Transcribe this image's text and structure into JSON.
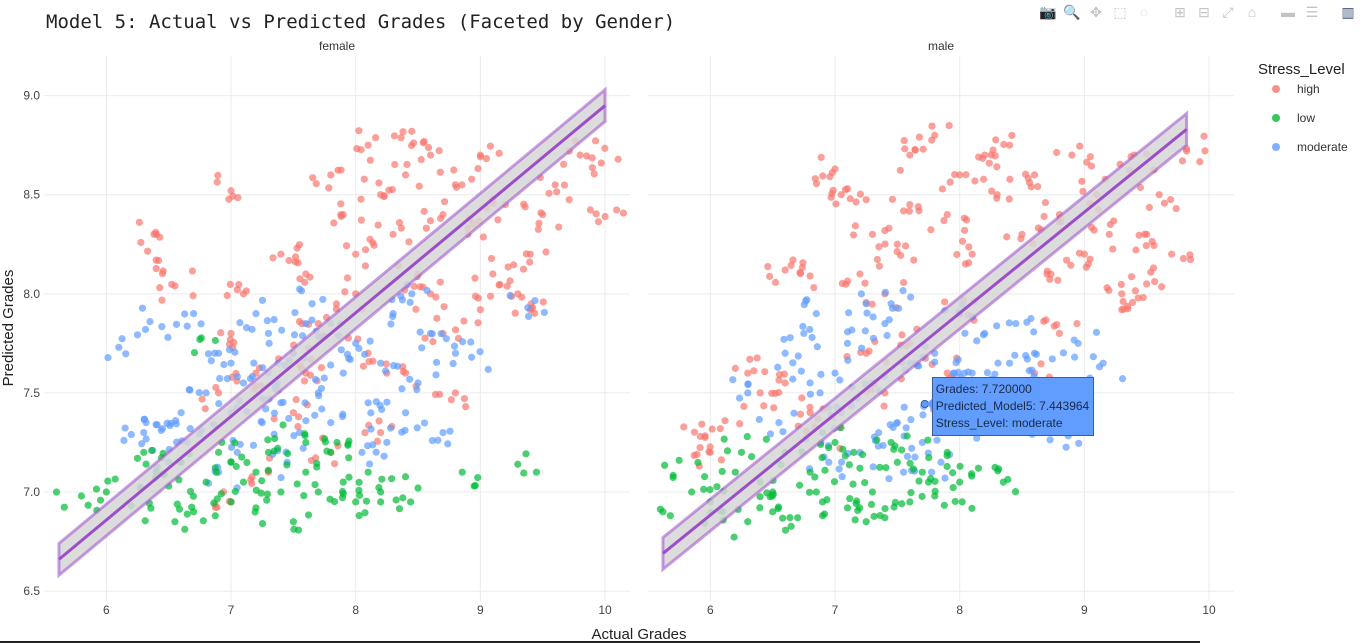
{
  "modebar": [
    {
      "name": "camera-icon",
      "glyph": "📷"
    },
    {
      "name": "zoom-icon",
      "glyph": "🔍"
    },
    {
      "name": "pan-icon",
      "glyph": "✥"
    },
    {
      "name": "box-select-icon",
      "glyph": "⬚"
    },
    {
      "name": "lasso-select-icon",
      "glyph": "◌"
    },
    {
      "name": "zoom-in-icon",
      "glyph": "⊞"
    },
    {
      "name": "zoom-out-icon",
      "glyph": "⊟"
    },
    {
      "name": "autoscale-icon",
      "glyph": "⤢"
    },
    {
      "name": "reset-axes-icon",
      "glyph": "⌂"
    },
    {
      "name": "spike-lines-icon",
      "glyph": "▬"
    },
    {
      "name": "compare-hover-icon",
      "glyph": "☰"
    },
    {
      "name": "plotly-logo-icon",
      "glyph": "▥"
    }
  ],
  "chart_data": {
    "type": "scatter",
    "title": "Model 5: Actual vs Predicted Grades (Faceted by Gender)",
    "xlabel": "Actual Grades",
    "ylabel": "Predicted Grades",
    "xlim": [
      5.5,
      10.2
    ],
    "ylim": [
      6.45,
      9.2
    ],
    "xticks": [
      6,
      7,
      8,
      9,
      10
    ],
    "yticks": [
      6.5,
      7.0,
      7.5,
      8.0,
      8.5,
      9.0
    ],
    "ytick_labels": [
      "6.5",
      "7.0",
      "7.5",
      "8.0",
      "8.5",
      "9.0"
    ],
    "grid": true,
    "legend": {
      "title": "Stress_Level",
      "position": "right"
    },
    "series": [
      {
        "name": "high",
        "color": "#f8766d"
      },
      {
        "name": "low",
        "color": "#00ba38"
      },
      {
        "name": "moderate",
        "color": "#619cff"
      }
    ],
    "fit_color": "#9b4dca",
    "band_color": "#d6d6d6",
    "facets": [
      {
        "label": "female",
        "fit": {
          "x": [
            5.62,
            10.0
          ],
          "y": [
            6.66,
            8.95
          ],
          "band_halfwidth_ends": 0.08
        },
        "samples": {
          "high": [
            [
              6.4,
              8.3
            ],
            [
              6.4,
              8.17
            ],
            [
              6.55,
              8.04
            ],
            [
              7.0,
              8.52
            ],
            [
              7.6,
              8.1
            ],
            [
              7.8,
              8.6
            ],
            [
              7.9,
              8.4
            ],
            [
              8.0,
              8.2
            ],
            [
              8.1,
              8.75
            ],
            [
              8.2,
              8.5
            ],
            [
              8.3,
              8.3
            ],
            [
              8.4,
              8.6
            ],
            [
              8.45,
              8.82
            ],
            [
              8.5,
              8.1
            ],
            [
              8.6,
              8.7
            ],
            [
              8.7,
              8.4
            ],
            [
              8.8,
              8.55
            ],
            [
              8.9,
              8.3
            ],
            [
              9.0,
              8.7
            ],
            [
              9.1,
              8.1
            ],
            [
              9.2,
              8.45
            ],
            [
              9.3,
              8.0
            ],
            [
              9.4,
              8.2
            ],
            [
              9.5,
              8.4
            ],
            [
              9.6,
              8.55
            ],
            [
              9.8,
              8.7
            ],
            [
              9.97,
              8.66
            ],
            [
              10.0,
              8.39
            ],
            [
              9.4,
              7.92
            ],
            [
              9.0,
              7.92
            ],
            [
              8.7,
              7.8
            ],
            [
              7.0,
              7.8
            ],
            [
              7.2,
              7.6
            ],
            [
              6.9,
              7.5
            ],
            [
              7.5,
              7.4
            ],
            [
              7.8,
              7.2
            ],
            [
              7.3,
              7.1
            ],
            [
              7.0,
              6.95
            ],
            [
              7.6,
              7.6
            ],
            [
              8.2,
              7.3
            ],
            [
              8.8,
              7.5
            ],
            [
              8.4,
              7.6
            ],
            [
              7.4,
              8.2
            ],
            [
              7.1,
              8.0
            ],
            [
              8.1,
              7.7
            ],
            [
              8.6,
              8.0
            ],
            [
              8.0,
              8.0
            ],
            [
              7.7,
              7.85
            ],
            [
              7.5,
              7.7
            ]
          ],
          "low": [
            [
              5.6,
              7.0
            ],
            [
              5.8,
              6.98
            ],
            [
              6.0,
              7.0
            ],
            [
              6.2,
              6.93
            ],
            [
              6.4,
              7.1
            ],
            [
              6.5,
              7.03
            ],
            [
              6.55,
              6.85
            ],
            [
              6.7,
              6.9
            ],
            [
              6.75,
              7.77
            ],
            [
              6.9,
              7.2
            ],
            [
              7.0,
              6.95
            ],
            [
              7.1,
              7.05
            ],
            [
              7.2,
              7.1
            ],
            [
              7.3,
              7.2
            ],
            [
              7.4,
              7.0
            ],
            [
              7.5,
              6.85
            ],
            [
              7.6,
              7.1
            ],
            [
              7.7,
              7.0
            ],
            [
              7.8,
              7.2
            ],
            [
              7.9,
              7.05
            ],
            [
              8.0,
              6.95
            ],
            [
              8.1,
              7.1
            ],
            [
              8.2,
              6.95
            ],
            [
              8.5,
              7.02
            ],
            [
              8.95,
              7.03
            ],
            [
              9.3,
              7.14
            ],
            [
              6.3,
              7.2
            ],
            [
              6.6,
              7.15
            ],
            [
              6.8,
              7.05
            ],
            [
              7.0,
              7.15
            ],
            [
              7.2,
              6.92
            ],
            [
              7.35,
              7.27
            ],
            [
              7.6,
              7.25
            ],
            [
              7.85,
              7.25
            ],
            [
              8.2,
              7.0
            ]
          ],
          "moderate": [
            [
              6.1,
              7.73
            ],
            [
              6.35,
              7.86
            ],
            [
              6.2,
              7.29
            ],
            [
              6.3,
              7.3
            ],
            [
              6.45,
              7.32
            ],
            [
              6.6,
              7.4
            ],
            [
              6.7,
              7.9
            ],
            [
              6.8,
              7.5
            ],
            [
              6.9,
              7.7
            ],
            [
              7.0,
              7.4
            ],
            [
              7.05,
              7.2
            ],
            [
              7.1,
              7.55
            ],
            [
              7.2,
              7.9
            ],
            [
              7.25,
              7.35
            ],
            [
              7.3,
              7.6
            ],
            [
              7.4,
              7.45
            ],
            [
              7.5,
              7.7
            ],
            [
              7.55,
              7.3
            ],
            [
              7.6,
              7.85
            ],
            [
              7.7,
              7.5
            ],
            [
              7.8,
              7.35
            ],
            [
              7.9,
              7.6
            ],
            [
              8.0,
              7.75
            ],
            [
              8.05,
              7.2
            ],
            [
              8.1,
              7.45
            ],
            [
              8.2,
              7.65
            ],
            [
              8.3,
              7.9
            ],
            [
              8.4,
              7.4
            ],
            [
              8.5,
              7.55
            ],
            [
              8.6,
              7.8
            ],
            [
              8.7,
              7.3
            ],
            [
              8.8,
              7.7
            ],
            [
              8.93,
              7.68
            ],
            [
              9.38,
              7.93
            ],
            [
              6.5,
              7.15
            ],
            [
              6.9,
              7.1
            ],
            [
              7.3,
              7.8
            ],
            [
              7.8,
              7.85
            ],
            [
              8.25,
              7.25
            ],
            [
              8.45,
              8.0
            ],
            [
              7.45,
              7.15
            ],
            [
              6.65,
              7.25
            ],
            [
              7.0,
              7.65
            ],
            [
              7.65,
              7.95
            ]
          ]
        }
      },
      {
        "label": "male",
        "fit": {
          "x": [
            5.62,
            9.82
          ],
          "y": [
            6.69,
            8.83
          ],
          "band_halfwidth_ends": 0.08
        },
        "samples": {
          "high": [
            [
              5.92,
              7.28
            ],
            [
              6.08,
              7.32
            ],
            [
              6.3,
              7.6
            ],
            [
              6.6,
              8.12
            ],
            [
              6.8,
              8.09
            ],
            [
              7.0,
              8.63
            ],
            [
              7.05,
              8.5
            ],
            [
              7.1,
              8.53
            ],
            [
              7.2,
              8.1
            ],
            [
              7.3,
              8.3
            ],
            [
              7.4,
              8.0
            ],
            [
              7.5,
              8.25
            ],
            [
              7.6,
              8.45
            ],
            [
              7.6,
              8.7
            ],
            [
              7.8,
              8.8
            ],
            [
              7.9,
              8.4
            ],
            [
              8.0,
              8.6
            ],
            [
              8.1,
              8.2
            ],
            [
              8.2,
              8.7
            ],
            [
              8.3,
              8.5
            ],
            [
              8.4,
              8.75
            ],
            [
              8.5,
              8.3
            ],
            [
              8.6,
              8.6
            ],
            [
              8.7,
              8.1
            ],
            [
              8.8,
              8.4
            ],
            [
              8.9,
              8.7
            ],
            [
              9.0,
              8.2
            ],
            [
              9.1,
              8.5
            ],
            [
              9.2,
              8.3
            ],
            [
              9.3,
              8.0
            ],
            [
              9.4,
              8.7
            ],
            [
              9.5,
              8.3
            ],
            [
              9.6,
              8.5
            ],
            [
              9.7,
              8.2
            ],
            [
              9.82,
              8.72
            ],
            [
              9.5,
              8.05
            ],
            [
              9.3,
              7.92
            ],
            [
              8.6,
              7.6
            ],
            [
              8.2,
              7.4
            ],
            [
              7.9,
              7.6
            ],
            [
              7.4,
              7.5
            ],
            [
              6.8,
              7.4
            ],
            [
              6.6,
              7.55
            ],
            [
              6.4,
              7.5
            ],
            [
              7.25,
              7.7
            ],
            [
              7.6,
              7.75
            ],
            [
              8.0,
              7.9
            ],
            [
              8.8,
              7.8
            ],
            [
              6.0,
              7.2
            ],
            [
              6.9,
              7.3
            ]
          ],
          "low": [
            [
              5.62,
              6.9
            ],
            [
              5.75,
              7.16
            ],
            [
              5.85,
              7.0
            ],
            [
              6.0,
              6.95
            ],
            [
              6.1,
              6.9
            ],
            [
              6.2,
              7.1
            ],
            [
              6.3,
              6.85
            ],
            [
              6.4,
              7.05
            ],
            [
              6.5,
              6.9
            ],
            [
              6.6,
              7.2
            ],
            [
              6.7,
              6.87
            ],
            [
              6.8,
              7.1
            ],
            [
              6.9,
              6.95
            ],
            [
              7.0,
              7.25
            ],
            [
              7.1,
              6.92
            ],
            [
              7.2,
              7.12
            ],
            [
              7.3,
              7.0
            ],
            [
              7.4,
              6.87
            ],
            [
              7.5,
              7.15
            ],
            [
              7.6,
              6.95
            ],
            [
              7.7,
              7.1
            ],
            [
              7.8,
              6.98
            ],
            [
              7.9,
              7.2
            ],
            [
              8.0,
              7.05
            ],
            [
              8.15,
              7.12
            ],
            [
              8.35,
              7.05
            ],
            [
              8.02,
              6.95
            ],
            [
              6.25,
              7.2
            ],
            [
              6.5,
              7.0
            ],
            [
              6.85,
              7.0
            ],
            [
              7.15,
              7.2
            ],
            [
              7.45,
              7.25
            ],
            [
              7.75,
              7.05
            ],
            [
              7.25,
              6.85
            ]
          ],
          "moderate": [
            [
              6.3,
              7.5
            ],
            [
              6.6,
              7.7
            ],
            [
              6.75,
              7.8
            ],
            [
              6.85,
              7.9
            ],
            [
              6.9,
              7.3
            ],
            [
              7.0,
              7.6
            ],
            [
              7.05,
              7.4
            ],
            [
              7.1,
              7.75
            ],
            [
              7.2,
              7.2
            ],
            [
              7.3,
              7.55
            ],
            [
              7.4,
              7.85
            ],
            [
              7.5,
              7.35
            ],
            [
              7.6,
              7.65
            ],
            [
              7.7,
              7.25
            ],
            [
              7.72,
              7.44
            ],
            [
              7.8,
              7.7
            ],
            [
              7.9,
              7.45
            ],
            [
              8.0,
              7.9
            ],
            [
              8.05,
              7.3
            ],
            [
              8.1,
              7.6
            ],
            [
              8.2,
              7.8
            ],
            [
              8.3,
              7.4
            ],
            [
              8.4,
              7.65
            ],
            [
              8.5,
              7.35
            ],
            [
              8.6,
              7.7
            ],
            [
              8.7,
              7.55
            ],
            [
              8.8,
              7.3
            ],
            [
              8.95,
              7.75
            ],
            [
              9.15,
              7.65
            ],
            [
              6.55,
              7.35
            ],
            [
              6.95,
              7.15
            ],
            [
              7.45,
              7.95
            ],
            [
              7.85,
              7.15
            ],
            [
              8.25,
              7.55
            ],
            [
              6.8,
              7.55
            ],
            [
              7.25,
              7.95
            ],
            [
              7.55,
              7.1
            ],
            [
              8.45,
              7.85
            ],
            [
              7.95,
              7.6
            ],
            [
              7.35,
              7.3
            ]
          ]
        }
      }
    ]
  },
  "tooltip": {
    "lines": [
      "Grades:  7.720000",
      "Predicted_Model5: 7.443964",
      "Stress_Level: moderate"
    ],
    "point": {
      "facet": 1,
      "x": 7.72,
      "y": 7.443964
    }
  }
}
